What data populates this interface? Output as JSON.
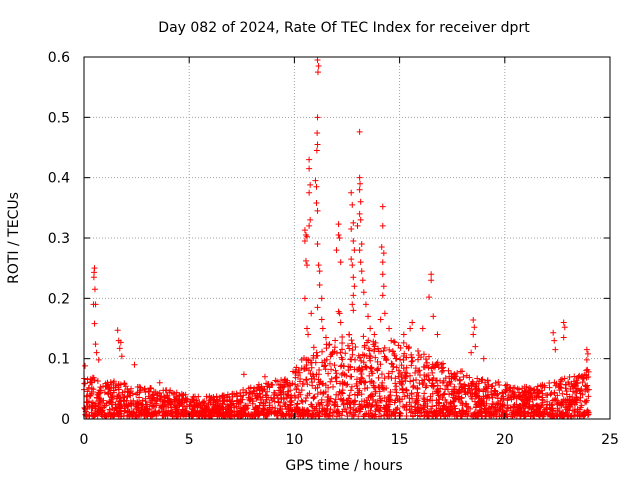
{
  "chart_data": {
    "type": "scatter",
    "title": "Day 082 of 2024, Rate Of TEC Index for receiver dprt",
    "xlabel": "GPS time / hours",
    "ylabel": "ROTI / TECUs",
    "xlim": [
      0,
      25
    ],
    "ylim": [
      0,
      0.6
    ],
    "x_ticks": [
      0,
      5,
      10,
      15,
      20,
      25
    ],
    "x_tick_labels": [
      "0",
      "5",
      "10",
      "15",
      "20",
      "25"
    ],
    "y_ticks": [
      0,
      0.1,
      0.2,
      0.3,
      0.4,
      0.5,
      0.6
    ],
    "y_tick_labels": [
      "0",
      "0.1",
      "0.2",
      "0.3",
      "0.4",
      "0.5",
      "0.6"
    ],
    "grid": true,
    "marker": "+",
    "series": [
      {
        "name": "ROTI",
        "color": "#ff0000",
        "profile_hours": [
          0,
          0.5,
          1,
          1.5,
          2,
          2.5,
          3,
          3.5,
          4,
          4.5,
          5,
          5.5,
          6,
          6.5,
          7,
          7.5,
          8,
          8.5,
          9,
          9.5,
          10,
          10.5,
          11,
          11.5,
          12,
          12.5,
          13,
          13.5,
          14,
          14.5,
          15,
          15.5,
          16,
          16.5,
          17,
          17.5,
          18,
          18.5,
          19,
          19.5,
          20,
          20.5,
          21,
          21.5,
          22,
          22.5,
          23,
          23.5,
          24
        ],
        "typical_max": [
          0.07,
          0.065,
          0.06,
          0.06,
          0.055,
          0.05,
          0.05,
          0.045,
          0.045,
          0.04,
          0.035,
          0.035,
          0.035,
          0.035,
          0.04,
          0.045,
          0.05,
          0.055,
          0.06,
          0.065,
          0.08,
          0.1,
          0.12,
          0.12,
          0.13,
          0.14,
          0.14,
          0.13,
          0.12,
          0.12,
          0.13,
          0.12,
          0.11,
          0.1,
          0.09,
          0.08,
          0.075,
          0.07,
          0.065,
          0.06,
          0.055,
          0.05,
          0.05,
          0.05,
          0.055,
          0.06,
          0.065,
          0.07,
          0.085
        ],
        "peaks": [
          {
            "x": 0.05,
            "y": 0.088
          },
          {
            "x": 0.5,
            "y": 0.25
          },
          {
            "x": 0.48,
            "y": 0.243
          },
          {
            "x": 0.47,
            "y": 0.235
          },
          {
            "x": 0.52,
            "y": 0.215
          },
          {
            "x": 0.45,
            "y": 0.19
          },
          {
            "x": 0.55,
            "y": 0.19
          },
          {
            "x": 0.5,
            "y": 0.158
          },
          {
            "x": 0.55,
            "y": 0.124
          },
          {
            "x": 0.6,
            "y": 0.11
          },
          {
            "x": 0.7,
            "y": 0.098
          },
          {
            "x": 1.6,
            "y": 0.147
          },
          {
            "x": 1.65,
            "y": 0.13
          },
          {
            "x": 1.75,
            "y": 0.127
          },
          {
            "x": 1.7,
            "y": 0.117
          },
          {
            "x": 1.8,
            "y": 0.104
          },
          {
            "x": 2.4,
            "y": 0.09
          },
          {
            "x": 3.6,
            "y": 0.06
          },
          {
            "x": 7.6,
            "y": 0.074
          },
          {
            "x": 8.6,
            "y": 0.07
          },
          {
            "x": 10.5,
            "y": 0.313
          },
          {
            "x": 10.55,
            "y": 0.305
          },
          {
            "x": 10.5,
            "y": 0.295
          },
          {
            "x": 10.6,
            "y": 0.302
          },
          {
            "x": 10.55,
            "y": 0.262
          },
          {
            "x": 10.6,
            "y": 0.255
          },
          {
            "x": 10.7,
            "y": 0.43
          },
          {
            "x": 10.7,
            "y": 0.415
          },
          {
            "x": 10.75,
            "y": 0.388
          },
          {
            "x": 10.7,
            "y": 0.375
          },
          {
            "x": 10.75,
            "y": 0.33
          },
          {
            "x": 10.7,
            "y": 0.32
          },
          {
            "x": 10.6,
            "y": 0.15
          },
          {
            "x": 10.65,
            "y": 0.14
          },
          {
            "x": 10.8,
            "y": 0.175
          },
          {
            "x": 10.5,
            "y": 0.2
          },
          {
            "x": 11.1,
            "y": 0.595
          },
          {
            "x": 11.15,
            "y": 0.585
          },
          {
            "x": 11.12,
            "y": 0.575
          },
          {
            "x": 11.1,
            "y": 0.5
          },
          {
            "x": 11.08,
            "y": 0.474
          },
          {
            "x": 11.1,
            "y": 0.455
          },
          {
            "x": 11.07,
            "y": 0.445
          },
          {
            "x": 11.0,
            "y": 0.395
          },
          {
            "x": 11.05,
            "y": 0.385
          },
          {
            "x": 11.05,
            "y": 0.358
          },
          {
            "x": 11.1,
            "y": 0.345
          },
          {
            "x": 11.1,
            "y": 0.29
          },
          {
            "x": 11.15,
            "y": 0.255
          },
          {
            "x": 11.2,
            "y": 0.245
          },
          {
            "x": 11.2,
            "y": 0.222
          },
          {
            "x": 11.3,
            "y": 0.2
          },
          {
            "x": 11.1,
            "y": 0.185
          },
          {
            "x": 11.3,
            "y": 0.165
          },
          {
            "x": 11.35,
            "y": 0.15
          },
          {
            "x": 11.5,
            "y": 0.135
          },
          {
            "x": 12.1,
            "y": 0.323
          },
          {
            "x": 12.1,
            "y": 0.305
          },
          {
            "x": 12.15,
            "y": 0.3
          },
          {
            "x": 12.0,
            "y": 0.28
          },
          {
            "x": 12.2,
            "y": 0.26
          },
          {
            "x": 12.1,
            "y": 0.178
          },
          {
            "x": 12.15,
            "y": 0.175
          },
          {
            "x": 12.2,
            "y": 0.16
          },
          {
            "x": 12.7,
            "y": 0.375
          },
          {
            "x": 12.75,
            "y": 0.355
          },
          {
            "x": 12.8,
            "y": 0.325
          },
          {
            "x": 12.7,
            "y": 0.315
          },
          {
            "x": 12.8,
            "y": 0.295
          },
          {
            "x": 12.85,
            "y": 0.28
          },
          {
            "x": 12.7,
            "y": 0.265
          },
          {
            "x": 12.75,
            "y": 0.255
          },
          {
            "x": 12.8,
            "y": 0.235
          },
          {
            "x": 12.85,
            "y": 0.22
          },
          {
            "x": 12.8,
            "y": 0.205
          },
          {
            "x": 12.75,
            "y": 0.19
          },
          {
            "x": 12.8,
            "y": 0.18
          },
          {
            "x": 12.6,
            "y": 0.14
          },
          {
            "x": 13.1,
            "y": 0.476
          },
          {
            "x": 13.1,
            "y": 0.4
          },
          {
            "x": 13.12,
            "y": 0.39
          },
          {
            "x": 13.1,
            "y": 0.38
          },
          {
            "x": 13.15,
            "y": 0.36
          },
          {
            "x": 13.1,
            "y": 0.34
          },
          {
            "x": 13.15,
            "y": 0.33
          },
          {
            "x": 13.0,
            "y": 0.32
          },
          {
            "x": 13.2,
            "y": 0.29
          },
          {
            "x": 13.1,
            "y": 0.28
          },
          {
            "x": 13.15,
            "y": 0.26
          },
          {
            "x": 13.2,
            "y": 0.245
          },
          {
            "x": 13.25,
            "y": 0.23
          },
          {
            "x": 13.3,
            "y": 0.21
          },
          {
            "x": 13.4,
            "y": 0.19
          },
          {
            "x": 13.5,
            "y": 0.17
          },
          {
            "x": 13.6,
            "y": 0.15
          },
          {
            "x": 14.2,
            "y": 0.352
          },
          {
            "x": 14.2,
            "y": 0.32
          },
          {
            "x": 14.15,
            "y": 0.285
          },
          {
            "x": 14.25,
            "y": 0.275
          },
          {
            "x": 14.2,
            "y": 0.26
          },
          {
            "x": 14.2,
            "y": 0.24
          },
          {
            "x": 14.25,
            "y": 0.22
          },
          {
            "x": 14.2,
            "y": 0.205
          },
          {
            "x": 14.3,
            "y": 0.175
          },
          {
            "x": 14.1,
            "y": 0.165
          },
          {
            "x": 13.8,
            "y": 0.14
          },
          {
            "x": 14.5,
            "y": 0.15
          },
          {
            "x": 14.6,
            "y": 0.13
          },
          {
            "x": 15.2,
            "y": 0.14
          },
          {
            "x": 15.5,
            "y": 0.15
          },
          {
            "x": 15.6,
            "y": 0.16
          },
          {
            "x": 16.1,
            "y": 0.15
          },
          {
            "x": 16.5,
            "y": 0.24
          },
          {
            "x": 16.5,
            "y": 0.23
          },
          {
            "x": 16.4,
            "y": 0.202
          },
          {
            "x": 16.6,
            "y": 0.17
          },
          {
            "x": 16.8,
            "y": 0.14
          },
          {
            "x": 18.5,
            "y": 0.164
          },
          {
            "x": 18.55,
            "y": 0.152
          },
          {
            "x": 18.5,
            "y": 0.14
          },
          {
            "x": 18.6,
            "y": 0.12
          },
          {
            "x": 18.4,
            "y": 0.11
          },
          {
            "x": 19.0,
            "y": 0.1
          },
          {
            "x": 22.3,
            "y": 0.143
          },
          {
            "x": 22.35,
            "y": 0.13
          },
          {
            "x": 22.4,
            "y": 0.115
          },
          {
            "x": 22.8,
            "y": 0.16
          },
          {
            "x": 22.85,
            "y": 0.152
          },
          {
            "x": 22.8,
            "y": 0.135
          },
          {
            "x": 23.9,
            "y": 0.115
          },
          {
            "x": 23.95,
            "y": 0.108
          },
          {
            "x": 23.9,
            "y": 0.098
          }
        ]
      }
    ]
  }
}
